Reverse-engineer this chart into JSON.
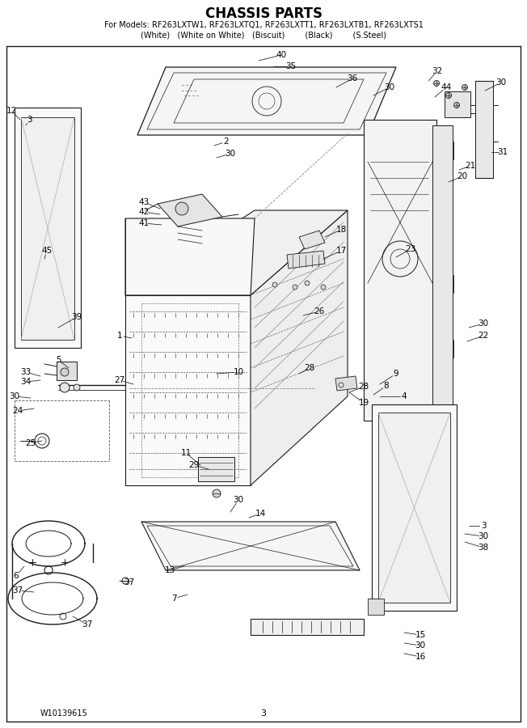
{
  "title": "CHASSIS PARTS",
  "subtitle1": "For Models: RF263LXTW1, RF263LXTQ1, RF263LXTT1, RF263LXTB1, RF263LXTS1",
  "subtitle2": "(White)   (White on White)   (Biscuit)        (Black)        (S.Steel)",
  "footer_left": "W10139615",
  "footer_center": "3",
  "bg_color": "#ffffff",
  "lc": "#1a1a1a",
  "title_fontsize": 11,
  "sub1_fontsize": 7,
  "sub2_fontsize": 7,
  "ann_fontsize": 7.5
}
